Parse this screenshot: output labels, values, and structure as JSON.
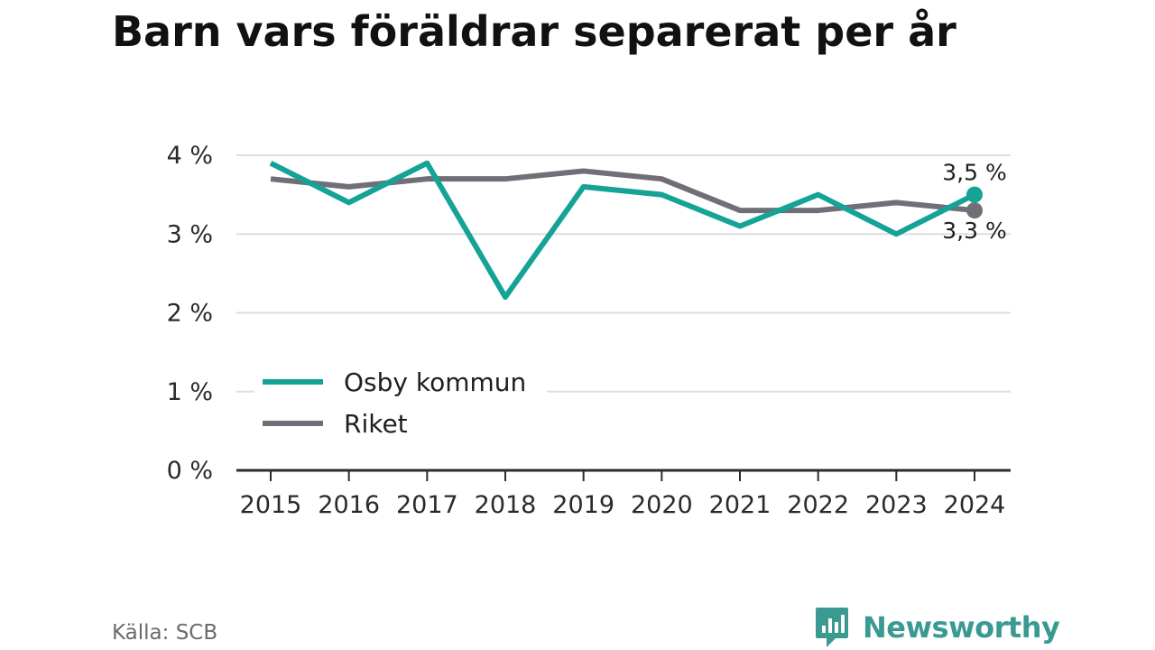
{
  "chart_data": {
    "type": "line",
    "title": "Barn vars föräldrar separerat per år",
    "x": [
      "2015",
      "2016",
      "2017",
      "2018",
      "2019",
      "2020",
      "2021",
      "2022",
      "2023",
      "2024"
    ],
    "ylim": [
      0,
      4
    ],
    "yticks": [
      0,
      1,
      2,
      3,
      4
    ],
    "ytick_labels": [
      "0 %",
      "1 %",
      "2 %",
      "3 %",
      "4 %"
    ],
    "grid": true,
    "legend_position": "bottom-left inside plot",
    "series": [
      {
        "name": "Osby kommun",
        "color": "#14a396",
        "values": [
          3.9,
          3.4,
          3.9,
          2.2,
          3.6,
          3.5,
          3.1,
          3.5,
          3.0,
          3.5
        ],
        "end_label": "3,5 %"
      },
      {
        "name": "Riket",
        "color": "#706f78",
        "values": [
          3.7,
          3.6,
          3.7,
          3.7,
          3.8,
          3.7,
          3.3,
          3.3,
          3.4,
          3.3
        ],
        "end_label": "3,3 %"
      }
    ]
  },
  "source": "Källa: SCB",
  "brand": {
    "name": "Newsworthy",
    "icon": "newsworthy-logo-icon",
    "color": "#3a9a92"
  }
}
